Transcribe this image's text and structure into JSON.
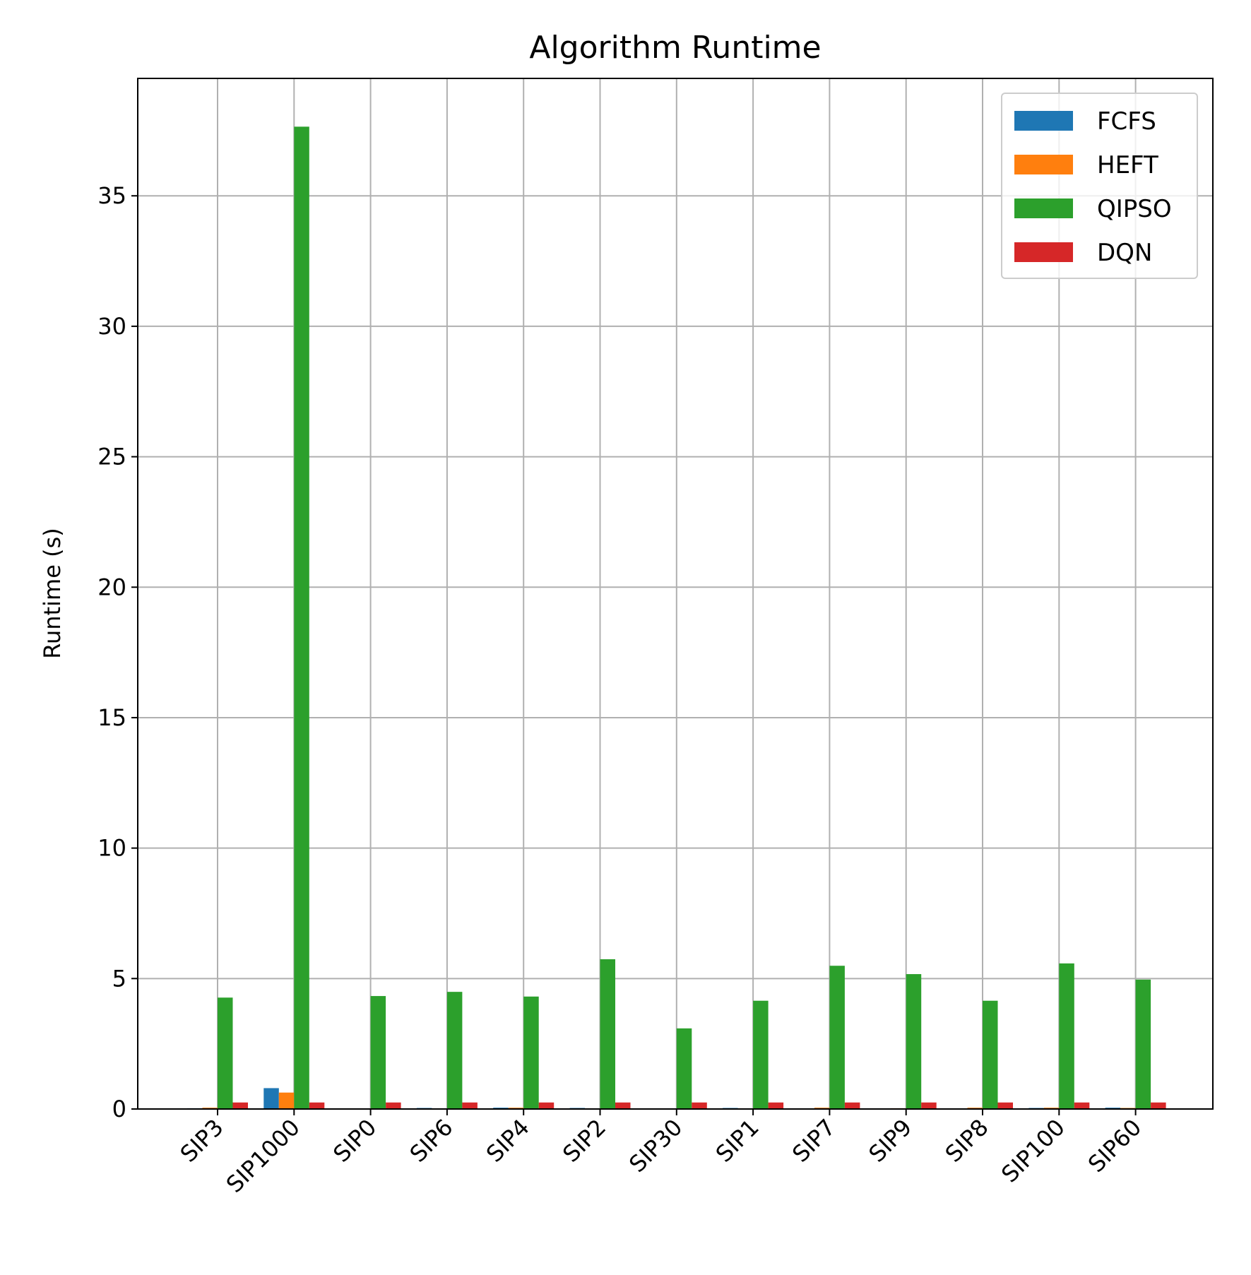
{
  "chart_data": {
    "type": "bar",
    "title": "Algorithm Runtime",
    "xlabel": "",
    "ylabel": "Runtime (s)",
    "categories": [
      "SIP3",
      "SIP1000",
      "SIP0",
      "SIP6",
      "SIP4",
      "SIP2",
      "SIP30",
      "SIP1",
      "SIP7",
      "SIP9",
      "SIP8",
      "SIP100",
      "SIP60"
    ],
    "series": [
      {
        "name": "FCFS",
        "color": "#1f77b4",
        "values": [
          0.03,
          0.8,
          0.02,
          0.04,
          0.05,
          0.04,
          0.01,
          0.04,
          0.02,
          0.02,
          0.02,
          0.04,
          0.05
        ]
      },
      {
        "name": "HEFT",
        "color": "#ff7f0e",
        "values": [
          0.05,
          0.63,
          0.02,
          0.02,
          0.05,
          0.02,
          0.02,
          0.02,
          0.05,
          0.03,
          0.05,
          0.05,
          0.04
        ]
      },
      {
        "name": "QIPSO",
        "color": "#2ca02c",
        "values": [
          4.27,
          37.65,
          4.33,
          4.49,
          4.31,
          5.74,
          3.09,
          4.15,
          5.49,
          5.17,
          4.15,
          5.58,
          4.96
        ]
      },
      {
        "name": "DQN",
        "color": "#d62728",
        "values": [
          0.25,
          0.25,
          0.25,
          0.25,
          0.25,
          0.25,
          0.25,
          0.25,
          0.25,
          0.25,
          0.25,
          0.25,
          0.25
        ]
      }
    ],
    "yticks": [
      0,
      5,
      10,
      15,
      20,
      25,
      30,
      35
    ],
    "ylim": [
      0,
      39.5
    ],
    "grid": true,
    "legend_position": "top-right"
  }
}
